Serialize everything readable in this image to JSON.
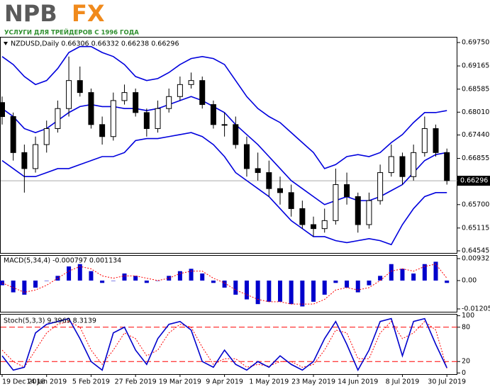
{
  "logo": {
    "brand_left": "NPB",
    "brand_right": "FX",
    "tagline": "УСЛУГИ ДЛЯ ТРЕЙДЕРОВ С 1996 ГОДА"
  },
  "chart_data": [
    {
      "type": "candlestick",
      "title": "NZDUSD,Daily  0.66306 0.66332 0.66238 0.66296",
      "categories": [
        "19 Dec 2018",
        null,
        null,
        null,
        "14 Jan 2019",
        null,
        null,
        null,
        "5 Feb 2019",
        null,
        null,
        null,
        "27 Feb 2019",
        null,
        null,
        null,
        "19 Mar 2019",
        null,
        null,
        null,
        "9 Apr 2019",
        null,
        null,
        null,
        "1 May 2019",
        null,
        null,
        null,
        "23 May 2019",
        null,
        null,
        null,
        "14 Jun 2019",
        null,
        null,
        null,
        "8 Jul 2019",
        null,
        null,
        null,
        "30 Jul 2019"
      ],
      "open": [
        0.6825,
        0.679,
        0.67,
        0.666,
        0.672,
        0.676,
        0.681,
        0.688,
        0.685,
        0.677,
        0.674,
        0.683,
        0.685,
        0.68,
        0.676,
        0.681,
        0.684,
        0.687,
        0.688,
        0.682,
        0.677,
        0.677,
        0.672,
        0.666,
        0.665,
        0.661,
        0.66,
        0.656,
        0.652,
        0.651,
        0.653,
        0.662,
        0.659,
        0.652,
        0.658,
        0.665,
        0.669,
        0.664,
        0.67,
        0.676,
        0.67
      ],
      "high": [
        0.684,
        0.68,
        0.672,
        0.674,
        0.678,
        0.683,
        0.694,
        0.6915,
        0.686,
        0.679,
        0.685,
        0.687,
        0.686,
        0.681,
        0.683,
        0.686,
        0.689,
        0.69,
        0.689,
        0.683,
        0.68,
        0.679,
        0.674,
        0.67,
        0.668,
        0.664,
        0.662,
        0.658,
        0.654,
        0.656,
        0.666,
        0.665,
        0.66,
        0.66,
        0.667,
        0.672,
        0.67,
        0.672,
        0.679,
        0.677,
        0.671
      ],
      "low": [
        0.677,
        0.668,
        0.66,
        0.665,
        0.67,
        0.675,
        0.679,
        0.684,
        0.676,
        0.672,
        0.673,
        0.682,
        0.679,
        0.674,
        0.675,
        0.68,
        0.683,
        0.686,
        0.681,
        0.676,
        0.674,
        0.671,
        0.664,
        0.663,
        0.659,
        0.657,
        0.654,
        0.651,
        0.649,
        0.65,
        0.652,
        0.657,
        0.65,
        0.651,
        0.657,
        0.664,
        0.662,
        0.663,
        0.669,
        0.669,
        0.662
      ],
      "close": [
        0.679,
        0.67,
        0.666,
        0.672,
        0.676,
        0.681,
        0.688,
        0.685,
        0.677,
        0.674,
        0.683,
        0.685,
        0.68,
        0.676,
        0.681,
        0.684,
        0.687,
        0.688,
        0.682,
        0.677,
        0.677,
        0.672,
        0.666,
        0.665,
        0.661,
        0.66,
        0.656,
        0.652,
        0.651,
        0.653,
        0.662,
        0.659,
        0.652,
        0.658,
        0.665,
        0.669,
        0.664,
        0.67,
        0.676,
        0.67,
        0.663
      ],
      "up_color": "#ffffff",
      "down_color": "#000000",
      "series": [
        {
          "color": "#0000dd",
          "values": [
            0.694,
            0.692,
            0.689,
            0.687,
            0.688,
            0.691,
            0.695,
            0.6965,
            0.6965,
            0.695,
            0.694,
            0.692,
            0.689,
            0.688,
            0.6885,
            0.69,
            0.692,
            0.6935,
            0.694,
            0.6935,
            0.692,
            0.688,
            0.684,
            0.681,
            0.679,
            0.6775,
            0.675,
            0.6725,
            0.67,
            0.666,
            0.667,
            0.669,
            0.6695,
            0.669,
            0.67,
            0.6725,
            0.6745,
            0.6775,
            0.68,
            0.68,
            0.6805
          ]
        },
        {
          "color": "#0000dd",
          "values": [
            0.681,
            0.679,
            0.676,
            0.675,
            0.676,
            0.678,
            0.68,
            0.6815,
            0.682,
            0.6815,
            0.6815,
            0.681,
            0.681,
            0.6805,
            0.681,
            0.682,
            0.683,
            0.684,
            0.683,
            0.6815,
            0.68,
            0.677,
            0.6745,
            0.672,
            0.669,
            0.666,
            0.663,
            0.661,
            0.659,
            0.657,
            0.658,
            0.659,
            0.658,
            0.658,
            0.659,
            0.6605,
            0.662,
            0.665,
            0.668,
            0.6695,
            0.67
          ]
        },
        {
          "color": "#0000dd",
          "values": [
            0.668,
            0.666,
            0.664,
            0.664,
            0.665,
            0.666,
            0.666,
            0.667,
            0.668,
            0.669,
            0.669,
            0.67,
            0.673,
            0.6735,
            0.6735,
            0.674,
            0.6745,
            0.675,
            0.674,
            0.672,
            0.669,
            0.665,
            0.663,
            0.661,
            0.659,
            0.656,
            0.653,
            0.651,
            0.649,
            0.649,
            0.648,
            0.6475,
            0.648,
            0.6485,
            0.648,
            0.647,
            0.652,
            0.656,
            0.659,
            0.66,
            0.66
          ]
        }
      ],
      "last_price": {
        "value": 0.66296,
        "label": "0.66296"
      },
      "ylim": [
        0.64492,
        0.69892
      ],
      "yticks": [
        {
          "value": 0.6975,
          "label": "0.69750"
        },
        {
          "value": 0.69165,
          "label": "0.69165"
        },
        {
          "value": 0.68585,
          "label": "0.68585"
        },
        {
          "value": 0.6801,
          "label": "0.68010"
        },
        {
          "value": 0.6744,
          "label": "0.67440"
        },
        {
          "value": 0.66855,
          "label": "0.66855"
        },
        {
          "value": 0.657,
          "label": "0.65700"
        },
        {
          "value": 0.65115,
          "label": "0.65115"
        },
        {
          "value": 0.64545,
          "label": "0.64545"
        }
      ]
    },
    {
      "type": "macd",
      "title": "MACD(5,34,4) -0.000797 0.001134",
      "series": [
        {
          "color": "#0000cc",
          "values": [
            -0.002,
            -0.005,
            -0.006,
            -0.003,
            0.0,
            0.002,
            0.006,
            0.007,
            0.004,
            -0.001,
            0.0,
            0.003,
            0.002,
            -0.001,
            0.0,
            0.002,
            0.004,
            0.005,
            0.003,
            -0.001,
            -0.003,
            -0.006,
            -0.008,
            -0.01,
            -0.009,
            -0.009,
            -0.01,
            -0.011,
            -0.009,
            -0.006,
            -0.001,
            -0.003,
            -0.005,
            -0.002,
            0.002,
            0.007,
            0.005,
            0.003,
            0.007,
            0.008,
            -0.001
          ]
        },
        {
          "color": "#ff0000",
          "values": [
            -0.001,
            -0.003,
            -0.005,
            -0.004,
            -0.002,
            0.001,
            0.004,
            0.006,
            0.005,
            0.002,
            0.001,
            0.002,
            0.002,
            0.001,
            0.0,
            0.001,
            0.003,
            0.004,
            0.004,
            0.001,
            -0.001,
            -0.004,
            -0.006,
            -0.008,
            -0.009,
            -0.009,
            -0.01,
            -0.01,
            -0.01,
            -0.008,
            -0.004,
            -0.003,
            -0.004,
            -0.003,
            0.0,
            0.004,
            0.005,
            0.004,
            0.006,
            0.007,
            0.001
          ]
        }
      ],
      "ylim": [
        -0.01326,
        0.01053
      ],
      "yticks": [
        0.009322,
        {
          "value": 0,
          "label": "0.00"
        },
        -0.012053
      ]
    },
    {
      "type": "stochastic",
      "title": "Stoch(5,3,3) 9.3969 8.3139",
      "series": [
        {
          "color": "#0000cc",
          "values": [
            30,
            5,
            10,
            70,
            85,
            90,
            95,
            60,
            20,
            5,
            70,
            80,
            40,
            15,
            60,
            85,
            90,
            75,
            20,
            10,
            40,
            15,
            5,
            20,
            10,
            30,
            15,
            5,
            20,
            60,
            90,
            50,
            5,
            40,
            90,
            95,
            30,
            90,
            95,
            50,
            9
          ]
        },
        {
          "color": "#ff0000",
          "values": [
            40,
            20,
            10,
            40,
            70,
            85,
            90,
            80,
            40,
            15,
            40,
            70,
            60,
            30,
            40,
            70,
            85,
            80,
            45,
            15,
            25,
            25,
            10,
            15,
            12,
            20,
            20,
            10,
            15,
            40,
            75,
            70,
            25,
            25,
            70,
            90,
            60,
            70,
            90,
            75,
            8
          ]
        }
      ],
      "levels": [
        80,
        20
      ],
      "level_color": "#ff0000",
      "ylim": [
        -2,
        102
      ],
      "yticks": [
        100,
        80,
        20,
        0
      ]
    }
  ]
}
